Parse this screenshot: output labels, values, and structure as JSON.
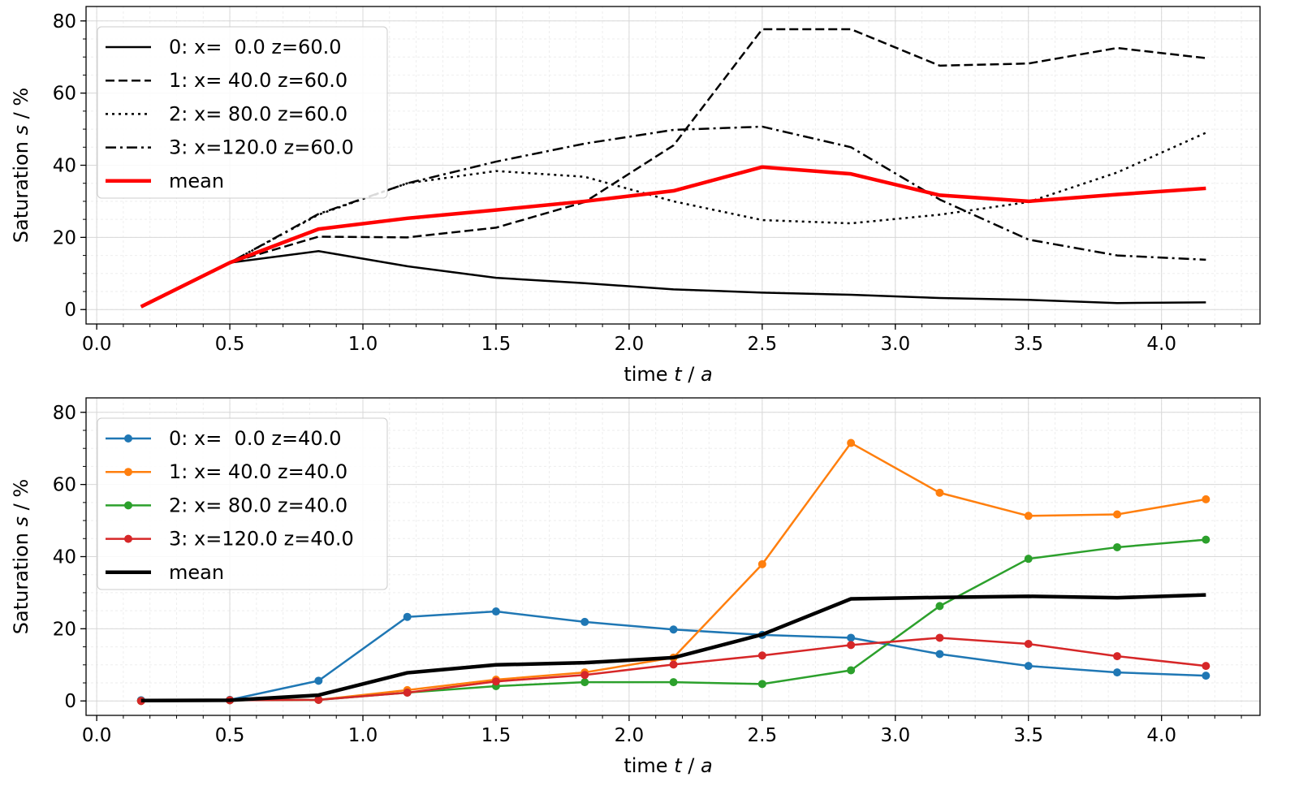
{
  "chart_data": [
    {
      "type": "line",
      "xlabel": "time t / a",
      "ylabel": "Saturation s / %",
      "xlim": [
        -0.04,
        4.37
      ],
      "ylim": [
        -4,
        84
      ],
      "xticks": [
        "0.0",
        "0.5",
        "1.0",
        "1.5",
        "2.0",
        "2.5",
        "3.0",
        "3.5",
        "4.0"
      ],
      "yticks": [
        "0",
        "20",
        "40",
        "60",
        "80"
      ],
      "grid": true,
      "legend": "top-left",
      "x": [
        0.1667,
        0.5,
        0.8333,
        1.1667,
        1.5,
        1.8333,
        2.1667,
        2.5,
        2.8333,
        3.1667,
        3.5,
        3.8333,
        4.1667
      ],
      "series": [
        {
          "name": "0: x=  0.0 z=60.0",
          "style": "solid",
          "color": "#000000",
          "values": [
            0.8,
            13,
            16.2,
            12,
            8.8,
            7.3,
            5.6,
            4.7,
            4.1,
            3.2,
            2.7,
            1.8,
            2.0
          ]
        },
        {
          "name": "1: x= 40.0 z=60.0",
          "style": "dashed",
          "color": "#000000",
          "values": [
            0.8,
            13,
            20.2,
            20,
            22.7,
            29.8,
            45.5,
            77.7,
            77.7,
            67.6,
            68.2,
            72.5,
            69.7
          ]
        },
        {
          "name": "2: x= 80.0 z=60.0",
          "style": "dotted",
          "color": "#000000",
          "values": [
            0.8,
            13,
            26.3,
            35,
            38.4,
            36.8,
            30,
            24.8,
            23.9,
            26.3,
            29.8,
            38,
            49
          ]
        },
        {
          "name": "3: x=120.0 z=60.0",
          "style": "dashdot",
          "color": "#000000",
          "values": [
            0.8,
            13,
            26.5,
            35,
            41,
            46,
            49.8,
            50.7,
            45,
            30.5,
            19.4,
            15,
            13.8
          ]
        },
        {
          "name": "mean",
          "style": "bold",
          "color": "#ff0000",
          "values": [
            0.8,
            13,
            22.3,
            25.3,
            27.6,
            30,
            32.9,
            39.5,
            37.6,
            31.7,
            30,
            31.9,
            33.6
          ]
        }
      ]
    },
    {
      "type": "line",
      "xlabel": "time t / a",
      "ylabel": "Saturation s / %",
      "xlim": [
        -0.04,
        4.37
      ],
      "ylim": [
        -4,
        84
      ],
      "xticks": [
        "0.0",
        "0.5",
        "1.0",
        "1.5",
        "2.0",
        "2.5",
        "3.0",
        "3.5",
        "4.0"
      ],
      "yticks": [
        "0",
        "20",
        "40",
        "60",
        "80"
      ],
      "grid": true,
      "legend": "top-left",
      "x": [
        0.1667,
        0.5,
        0.8333,
        1.1667,
        1.5,
        1.8333,
        2.1667,
        2.5,
        2.8333,
        3.1667,
        3.5,
        3.8333,
        4.1667
      ],
      "series": [
        {
          "name": "0: x=  0.0 z=40.0",
          "style": "marker",
          "color": "#1f77b4",
          "values": [
            0.2,
            0.3,
            5.6,
            23.3,
            24.8,
            21.9,
            19.8,
            18.3,
            17.5,
            13,
            9.7,
            7.9,
            7
          ]
        },
        {
          "name": "1: x= 40.0 z=40.0",
          "style": "marker",
          "color": "#ff7f0e",
          "values": [
            0,
            0.2,
            0.3,
            3,
            5.9,
            7.9,
            12,
            37.9,
            71.5,
            57.7,
            51.3,
            51.7,
            55.9
          ]
        },
        {
          "name": "2: x= 80.0 z=40.0",
          "style": "marker",
          "color": "#2ca02c",
          "values": [
            0,
            0.2,
            0.3,
            2.3,
            4.1,
            5.2,
            5.2,
            4.7,
            8.5,
            26.3,
            39.4,
            42.6,
            44.7
          ]
        },
        {
          "name": "3: x=120.0 z=40.0",
          "style": "marker",
          "color": "#d62728",
          "values": [
            0,
            0.2,
            0.3,
            2.3,
            5.4,
            7.2,
            10.1,
            12.6,
            15.5,
            17.5,
            15.8,
            12.4,
            9.7
          ]
        },
        {
          "name": "mean",
          "style": "bold",
          "color": "#000000",
          "values": [
            0.1,
            0.2,
            1.6,
            7.8,
            10,
            10.6,
            12,
            18.4,
            28.3,
            28.7,
            29,
            28.6,
            29.4
          ]
        }
      ]
    }
  ]
}
